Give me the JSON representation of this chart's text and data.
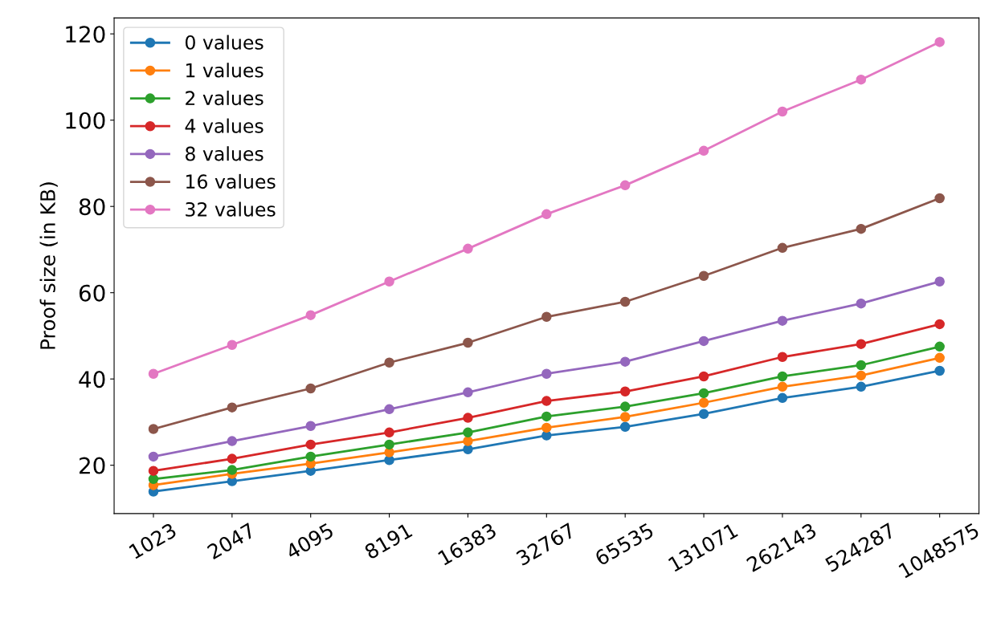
{
  "chart_data": {
    "type": "line",
    "ylabel": "Proof size (in KB)",
    "categories": [
      "1023",
      "2047",
      "4095",
      "8191",
      "16383",
      "32767",
      "65535",
      "131071",
      "262143",
      "524287",
      "1048575"
    ],
    "series": [
      {
        "name": "0 values",
        "color": "#1f77b4",
        "values": [
          13.9,
          16.3,
          18.7,
          21.2,
          23.7,
          26.9,
          28.9,
          31.9,
          35.6,
          38.2,
          41.9
        ]
      },
      {
        "name": "1 values",
        "color": "#ff7f0e",
        "values": [
          15.4,
          18.0,
          20.4,
          23.0,
          25.6,
          28.7,
          31.2,
          34.5,
          38.2,
          40.8,
          44.9
        ]
      },
      {
        "name": "2 values",
        "color": "#2ca02c",
        "values": [
          16.8,
          18.9,
          22.0,
          24.8,
          27.6,
          31.3,
          33.6,
          36.7,
          40.6,
          43.2,
          47.5
        ]
      },
      {
        "name": "4 values",
        "color": "#d62728",
        "values": [
          18.7,
          21.5,
          24.8,
          27.6,
          31.0,
          34.9,
          37.1,
          40.6,
          45.1,
          48.1,
          52.7
        ]
      },
      {
        "name": "8 values",
        "color": "#9467bd",
        "values": [
          22.0,
          25.6,
          29.1,
          33.0,
          36.9,
          41.2,
          44.0,
          48.8,
          53.5,
          57.5,
          62.6
        ]
      },
      {
        "name": "16 values",
        "color": "#8c564b",
        "values": [
          28.4,
          33.4,
          37.8,
          43.8,
          48.4,
          54.4,
          57.9,
          63.9,
          70.4,
          74.8,
          81.9
        ]
      },
      {
        "name": "32 values",
        "color": "#e377c2",
        "values": [
          41.2,
          47.9,
          54.8,
          62.6,
          70.2,
          78.2,
          84.9,
          92.9,
          102.0,
          109.4,
          118.1
        ]
      }
    ],
    "ylim": [
      8.8,
      123.7
    ],
    "yticks": [
      20,
      40,
      60,
      80,
      100,
      120
    ],
    "marker": "circle",
    "line_style": "solid",
    "legend": "top left",
    "grid": false
  }
}
